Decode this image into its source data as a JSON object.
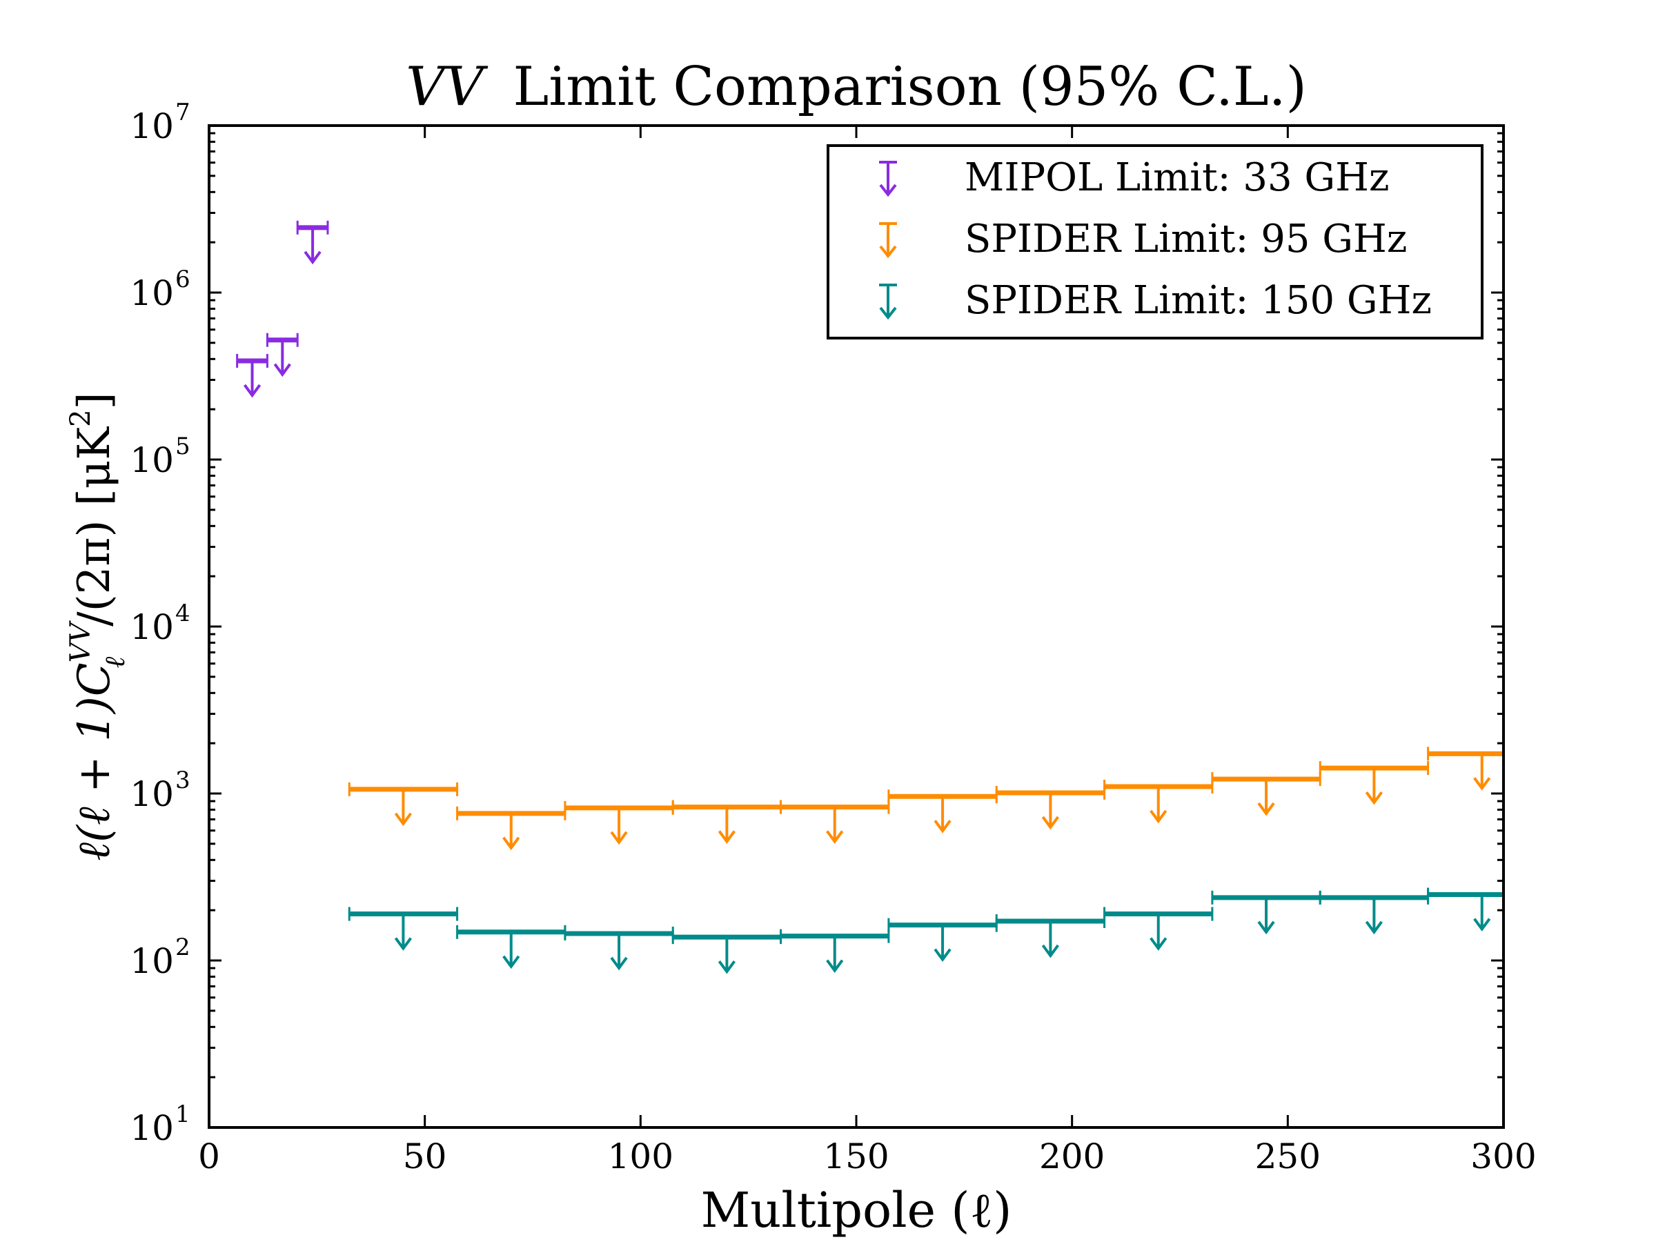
{
  "chart_data": {
    "type": "scatter",
    "title": "VV Limit Comparison (95% C.L.)",
    "title_italic": "VV",
    "title_rest": "Limit Comparison (95% C.L.)",
    "xlabel": "Multipole (ℓ)",
    "ylabel": "ℓ(ℓ + 1)C_ℓ^VV/(2π) [μK²]",
    "ylabel_parts": {
      "pre": "ℓ(ℓ + 1)C",
      "sub": "ℓ",
      "sup": "VV",
      "post": "/(2π) [μK",
      "post_sup": "2",
      "close": "]"
    },
    "xlim": [
      0,
      300
    ],
    "ylim": [
      10,
      10000000
    ],
    "yscale": "log",
    "xticks": [
      0,
      50,
      100,
      150,
      200,
      250,
      300
    ],
    "xtick_labels": [
      "0",
      "50",
      "100",
      "150",
      "200",
      "250",
      "300"
    ],
    "yticks": [
      10,
      100,
      1000,
      10000,
      100000,
      1000000,
      10000000
    ],
    "ytick_labels": [
      {
        "base": "10",
        "exp": "1"
      },
      {
        "base": "10",
        "exp": "2"
      },
      {
        "base": "10",
        "exp": "3"
      },
      {
        "base": "10",
        "exp": "4"
      },
      {
        "base": "10",
        "exp": "5"
      },
      {
        "base": "10",
        "exp": "6"
      },
      {
        "base": "10",
        "exp": "7"
      }
    ],
    "grid": false,
    "legend_position": "top-right",
    "series": [
      {
        "name": "MIPOL Limit: 33 GHz",
        "color": "#8a2be2",
        "marker": "upper-limit",
        "points": [
          {
            "x": 10,
            "y": 390000,
            "xerr": 3.5
          },
          {
            "x": 17,
            "y": 520000,
            "xerr": 3.5
          },
          {
            "x": 24,
            "y": 2450000,
            "xerr": 3.5
          }
        ]
      },
      {
        "name": "SPIDER Limit: 95 GHz",
        "color": "#ff8c00",
        "marker": "upper-limit",
        "points": [
          {
            "x": 45,
            "y": 1060,
            "xerr": 12.5
          },
          {
            "x": 70,
            "y": 760,
            "xerr": 12.5
          },
          {
            "x": 95,
            "y": 820,
            "xerr": 12.5
          },
          {
            "x": 120,
            "y": 830,
            "xerr": 12.5
          },
          {
            "x": 145,
            "y": 830,
            "xerr": 12.5
          },
          {
            "x": 170,
            "y": 960,
            "xerr": 12.5
          },
          {
            "x": 195,
            "y": 1010,
            "xerr": 12.5
          },
          {
            "x": 220,
            "y": 1100,
            "xerr": 12.5
          },
          {
            "x": 245,
            "y": 1220,
            "xerr": 12.5
          },
          {
            "x": 270,
            "y": 1420,
            "xerr": 12.5
          },
          {
            "x": 295,
            "y": 1730,
            "xerr": 12.5
          }
        ]
      },
      {
        "name": "SPIDER Limit: 150 GHz",
        "color": "#008b8b",
        "marker": "upper-limit",
        "points": [
          {
            "x": 45,
            "y": 190,
            "xerr": 12.5
          },
          {
            "x": 70,
            "y": 148,
            "xerr": 12.5
          },
          {
            "x": 95,
            "y": 145,
            "xerr": 12.5
          },
          {
            "x": 120,
            "y": 138,
            "xerr": 12.5
          },
          {
            "x": 145,
            "y": 140,
            "xerr": 12.5
          },
          {
            "x": 170,
            "y": 163,
            "xerr": 12.5
          },
          {
            "x": 195,
            "y": 172,
            "xerr": 12.5
          },
          {
            "x": 220,
            "y": 190,
            "xerr": 12.5
          },
          {
            "x": 245,
            "y": 238,
            "xerr": 12.5
          },
          {
            "x": 270,
            "y": 238,
            "xerr": 12.5
          },
          {
            "x": 295,
            "y": 248,
            "xerr": 12.5
          }
        ]
      }
    ]
  }
}
